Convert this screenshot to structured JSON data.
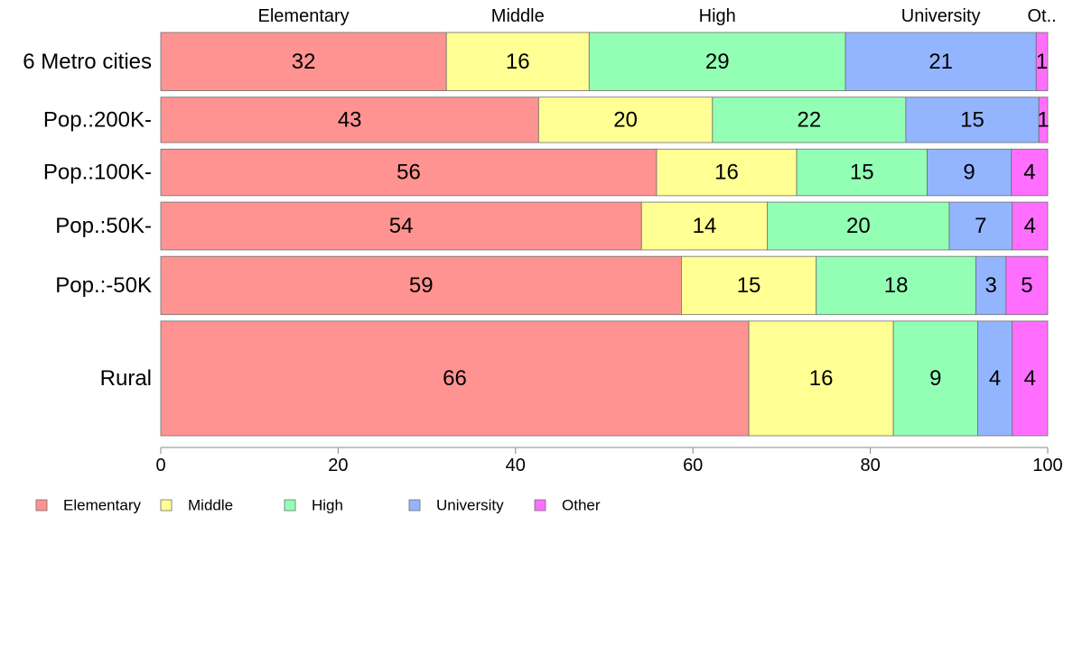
{
  "chart_data": {
    "type": "bar",
    "orientation": "horizontal",
    "stacked": true,
    "title": "",
    "xlabel": "",
    "ylabel": "",
    "xlim": [
      0,
      100
    ],
    "x_ticks": [
      0,
      20,
      40,
      60,
      80,
      100
    ],
    "grid": false,
    "categories": [
      "6 Metro cities",
      "Pop.:200K-",
      "Pop.:100K-",
      "Pop.:50K-",
      "Pop.:-50K",
      "Rural"
    ],
    "category_weights": [
      1.0,
      0.78,
      0.8,
      0.82,
      1.0,
      1.97
    ],
    "series": [
      {
        "name": "Elementary",
        "short_label": "Elementary",
        "color": "#ff9391",
        "values": [
          32.2,
          42.6,
          55.9,
          54.2,
          58.7,
          66.3
        ],
        "value_labels": [
          "32",
          "43",
          "56",
          "54",
          "59",
          "66"
        ]
      },
      {
        "name": "Middle",
        "short_label": "Middle",
        "color": "#ffff93",
        "values": [
          16.1,
          19.6,
          15.8,
          14.2,
          15.2,
          16.3
        ],
        "value_labels": [
          "16",
          "20",
          "16",
          "14",
          "15",
          "16"
        ]
      },
      {
        "name": "High",
        "short_label": "High",
        "color": "#93ffb5",
        "values": [
          28.9,
          21.8,
          14.7,
          20.5,
          18.0,
          9.5
        ],
        "value_labels": [
          "29",
          "22",
          "15",
          "20",
          "18",
          "9"
        ]
      },
      {
        "name": "University",
        "short_label": "University",
        "color": "#93b5ff",
        "values": [
          21.5,
          15.0,
          9.5,
          7.1,
          3.4,
          3.9
        ],
        "value_labels": [
          "21",
          "15",
          "9",
          "7",
          "3",
          "4"
        ]
      },
      {
        "name": "Other",
        "short_label": "Ot..",
        "color": "#ff6eff",
        "values": [
          1.3,
          1.0,
          4.1,
          4.0,
          4.7,
          4.0
        ],
        "value_labels": [
          "1",
          "1",
          "4",
          "4",
          "5",
          "4"
        ]
      }
    ],
    "legend": {
      "placement": "bottom-left",
      "items": [
        "Elementary",
        "Middle",
        "High",
        "University",
        "Other"
      ]
    }
  }
}
